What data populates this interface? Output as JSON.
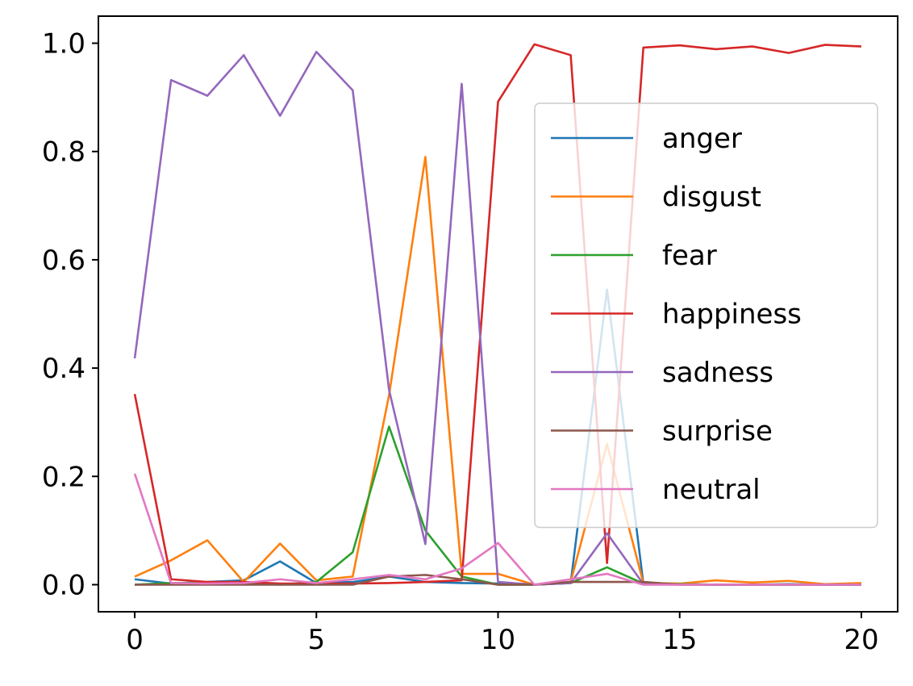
{
  "chart_data": {
    "type": "line",
    "title": "",
    "xlabel": "",
    "ylabel": "",
    "x": [
      0,
      1,
      2,
      3,
      4,
      5,
      6,
      7,
      8,
      9,
      10,
      11,
      12,
      13,
      14,
      15,
      16,
      17,
      18,
      19,
      20
    ],
    "xlim": [
      -1,
      21
    ],
    "ylim": [
      -0.05,
      1.05
    ],
    "x_ticks": [
      0,
      5,
      10,
      15,
      20
    ],
    "x_tick_labels": [
      "0",
      "5",
      "10",
      "15",
      "20"
    ],
    "y_ticks": [
      0.0,
      0.2,
      0.4,
      0.6,
      0.8,
      1.0
    ],
    "y_tick_labels": [
      "0.0",
      "0.2",
      "0.4",
      "0.6",
      "0.8",
      "1.0"
    ],
    "grid": false,
    "legend_position": "center-right",
    "series": [
      {
        "name": "anger",
        "color": "#1f77b4",
        "values": [
          0.01,
          0.002,
          0.005,
          0.008,
          0.043,
          0.003,
          0.005,
          0.015,
          0.005,
          0.003,
          0.002,
          0.0,
          0.003,
          0.545,
          0.002,
          0.001,
          0.0,
          0.0,
          0.001,
          0.0,
          0.0
        ]
      },
      {
        "name": "disgust",
        "color": "#ff7f0e",
        "values": [
          0.015,
          0.045,
          0.082,
          0.005,
          0.076,
          0.008,
          0.015,
          0.35,
          0.79,
          0.02,
          0.02,
          0.0,
          0.005,
          0.26,
          0.003,
          0.002,
          0.008,
          0.004,
          0.007,
          0.001,
          0.003
        ]
      },
      {
        "name": "fear",
        "color": "#2ca02c",
        "values": [
          0.0,
          0.003,
          0.003,
          0.003,
          0.0,
          0.005,
          0.06,
          0.292,
          0.1,
          0.015,
          0.0,
          0.0,
          0.003,
          0.032,
          0.002,
          0.001,
          0.0,
          0.0,
          0.0,
          0.0,
          0.0
        ]
      },
      {
        "name": "happiness",
        "color": "#d62728",
        "values": [
          0.352,
          0.01,
          0.005,
          0.005,
          0.002,
          0.002,
          0.002,
          0.003,
          0.005,
          0.008,
          0.892,
          0.998,
          0.978,
          0.04,
          0.992,
          0.996,
          0.989,
          0.994,
          0.982,
          0.997,
          0.994
        ]
      },
      {
        "name": "sadness",
        "color": "#9467bd",
        "values": [
          0.418,
          0.932,
          0.903,
          0.978,
          0.866,
          0.984,
          0.913,
          0.36,
          0.075,
          0.925,
          0.005,
          0.0,
          0.003,
          0.095,
          0.001,
          0.0,
          0.0,
          0.0,
          0.0,
          0.0,
          0.0
        ]
      },
      {
        "name": "surprise",
        "color": "#8c564b",
        "values": [
          0.0,
          0.0,
          0.0,
          0.0,
          0.0,
          0.0,
          0.0,
          0.015,
          0.018,
          0.01,
          0.0,
          0.0,
          0.005,
          0.005,
          0.005,
          0.0,
          0.0,
          0.0,
          0.0,
          0.0,
          0.0
        ]
      },
      {
        "name": "neutral",
        "color": "#e377c2",
        "values": [
          0.205,
          0.003,
          0.002,
          0.003,
          0.01,
          0.003,
          0.01,
          0.018,
          0.01,
          0.03,
          0.077,
          0.0,
          0.01,
          0.02,
          0.0,
          0.0,
          0.0,
          0.0,
          0.0,
          0.0,
          0.0
        ]
      }
    ]
  }
}
